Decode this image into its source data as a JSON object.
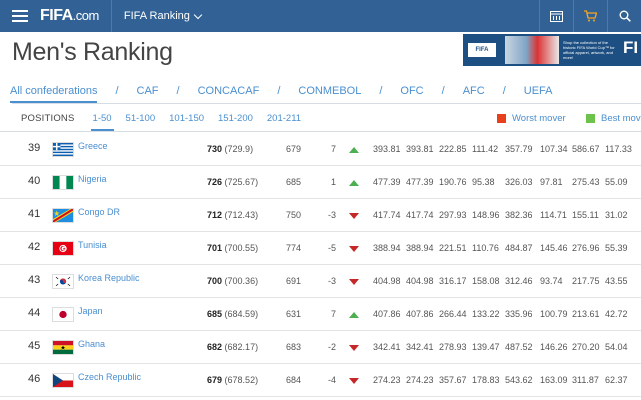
{
  "header": {
    "logo_main": "FIFA",
    "logo_suffix": ".com",
    "section": "FIFA Ranking"
  },
  "page_title": "Men's Ranking",
  "ad": {
    "badge": "FIFA",
    "text": "Shop the collection of the historic FIFA World Cup™ for official apparel, artwork, and more!",
    "brand": "FI"
  },
  "confederations": [
    "All confederations",
    "CAF",
    "CONCACAF",
    "CONMEBOL",
    "OFC",
    "AFC",
    "UEFA"
  ],
  "positions": {
    "label": "POSITIONS",
    "ranges": [
      "1-50",
      "51-100",
      "101-150",
      "151-200",
      "201-211"
    ]
  },
  "legend": {
    "worst": "Worst mover",
    "best": "Best mov",
    "worst_color": "#e8401c",
    "best_color": "#6cc24a"
  },
  "rows": [
    {
      "rank": "39",
      "flag": "greece",
      "team": "Greece",
      "points": "730",
      "prev_points": "(729.9)",
      "prev_rank": "679",
      "move": "7",
      "dir": "up",
      "v": [
        "393.81",
        "393.81",
        "222.85",
        "111.42",
        "357.79",
        "107.34",
        "586.67",
        "117.33"
      ]
    },
    {
      "rank": "40",
      "flag": "nigeria",
      "team": "Nigeria",
      "points": "726",
      "prev_points": "(725.67)",
      "prev_rank": "685",
      "move": "1",
      "dir": "up",
      "v": [
        "477.39",
        "477.39",
        "190.76",
        "95.38",
        "326.03",
        "97.81",
        "275.43",
        "55.09"
      ]
    },
    {
      "rank": "41",
      "flag": "congo",
      "team": "Congo DR",
      "points": "712",
      "prev_points": "(712.43)",
      "prev_rank": "750",
      "move": "-3",
      "dir": "down",
      "v": [
        "417.74",
        "417.74",
        "297.93",
        "148.96",
        "382.36",
        "114.71",
        "155.11",
        "31.02"
      ]
    },
    {
      "rank": "42",
      "flag": "tunisia",
      "team": "Tunisia",
      "points": "701",
      "prev_points": "(700.55)",
      "prev_rank": "774",
      "move": "-5",
      "dir": "down",
      "v": [
        "388.94",
        "388.94",
        "221.51",
        "110.76",
        "484.87",
        "145.46",
        "276.96",
        "55.39"
      ]
    },
    {
      "rank": "43",
      "flag": "korea",
      "team": "Korea Republic",
      "points": "700",
      "prev_points": "(700.36)",
      "prev_rank": "691",
      "move": "-3",
      "dir": "down",
      "v": [
        "404.98",
        "404.98",
        "316.17",
        "158.08",
        "312.46",
        "93.74",
        "217.75",
        "43.55"
      ]
    },
    {
      "rank": "44",
      "flag": "japan",
      "team": "Japan",
      "points": "685",
      "prev_points": "(684.59)",
      "prev_rank": "631",
      "move": "7",
      "dir": "up",
      "v": [
        "407.86",
        "407.86",
        "266.44",
        "133.22",
        "335.96",
        "100.79",
        "213.61",
        "42.72"
      ]
    },
    {
      "rank": "45",
      "flag": "ghana",
      "team": "Ghana",
      "points": "682",
      "prev_points": "(682.17)",
      "prev_rank": "683",
      "move": "-2",
      "dir": "down",
      "v": [
        "342.41",
        "342.41",
        "278.93",
        "139.47",
        "487.52",
        "146.26",
        "270.20",
        "54.04"
      ]
    },
    {
      "rank": "46",
      "flag": "czech",
      "team": "Czech Republic",
      "points": "679",
      "prev_points": "(678.52)",
      "prev_rank": "684",
      "move": "-4",
      "dir": "down",
      "v": [
        "274.23",
        "274.23",
        "357.67",
        "178.83",
        "543.62",
        "163.09",
        "311.87",
        "62.37"
      ]
    }
  ]
}
